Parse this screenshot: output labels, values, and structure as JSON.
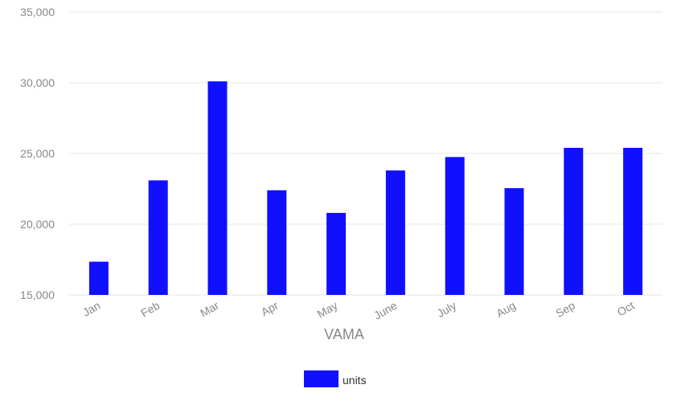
{
  "chart_data": {
    "type": "bar",
    "title": "",
    "xlabel": "VAMA",
    "ylabel": "",
    "categories": [
      "Jan",
      "Feb",
      "Mar",
      "Apr",
      "May",
      "June",
      "July",
      "Aug",
      "Sep",
      "Oct"
    ],
    "series": [
      {
        "name": "units",
        "color": "#1010ff",
        "values": [
          17350,
          23100,
          30100,
          22400,
          20800,
          23800,
          24750,
          22550,
          25400,
          25400
        ]
      }
    ],
    "ylim": [
      15000,
      35000
    ],
    "yticks": [
      15000,
      20000,
      25000,
      30000,
      35000
    ],
    "ytick_labels": [
      "15,000",
      "20,000",
      "25,000",
      "30,000",
      "35,000"
    ],
    "grid": true,
    "legend_position": "bottom-center",
    "x_tick_rotation": "slanted"
  }
}
